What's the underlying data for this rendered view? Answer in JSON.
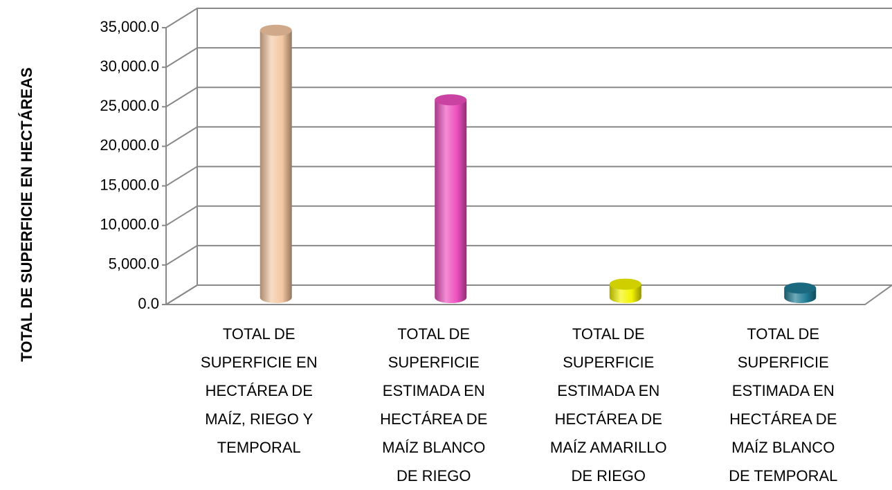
{
  "chart_data": {
    "type": "bar3d",
    "y_label": "TOTAL DE SUPERFICIE EN HECTÁREAS",
    "categories": [
      "TOTAL DE SUPERFICIE EN HECTÁREA DE MAÍZ, RIEGO Y TEMPORAL",
      "TOTAL DE SUPERFICIE ESTIMADA EN HECTÁREA DE MAÍZ BLANCO DE RIEGO",
      "TOTAL DE SUPERFICIE ESTIMADA EN HECTÁREA DE MAÍZ AMARILLO DE RIEGO",
      "TOTAL DE SUPERFICIE ESTIMADA EN HECTÁREA DE MAÍZ BLANCO DE TEMPORAL"
    ],
    "values": [
      33800,
      25000,
      1700,
      1200
    ],
    "colors": [
      "#f3c7a2",
      "#ee4fbf",
      "#f4f400",
      "#1f7c95"
    ],
    "ylim": [
      0,
      35000
    ],
    "yticks": [
      {
        "value": 0,
        "label": "0.0"
      },
      {
        "value": 5000,
        "label": "5,000.0"
      },
      {
        "value": 10000,
        "label": "10,000.0"
      },
      {
        "value": 15000,
        "label": "15,000.0"
      },
      {
        "value": 20000,
        "label": "20,000.0"
      },
      {
        "value": 25000,
        "label": "25,000.0"
      },
      {
        "value": 30000,
        "label": "30,000.0"
      },
      {
        "value": 35000,
        "label": "35,000.0"
      }
    ],
    "grid": true
  }
}
